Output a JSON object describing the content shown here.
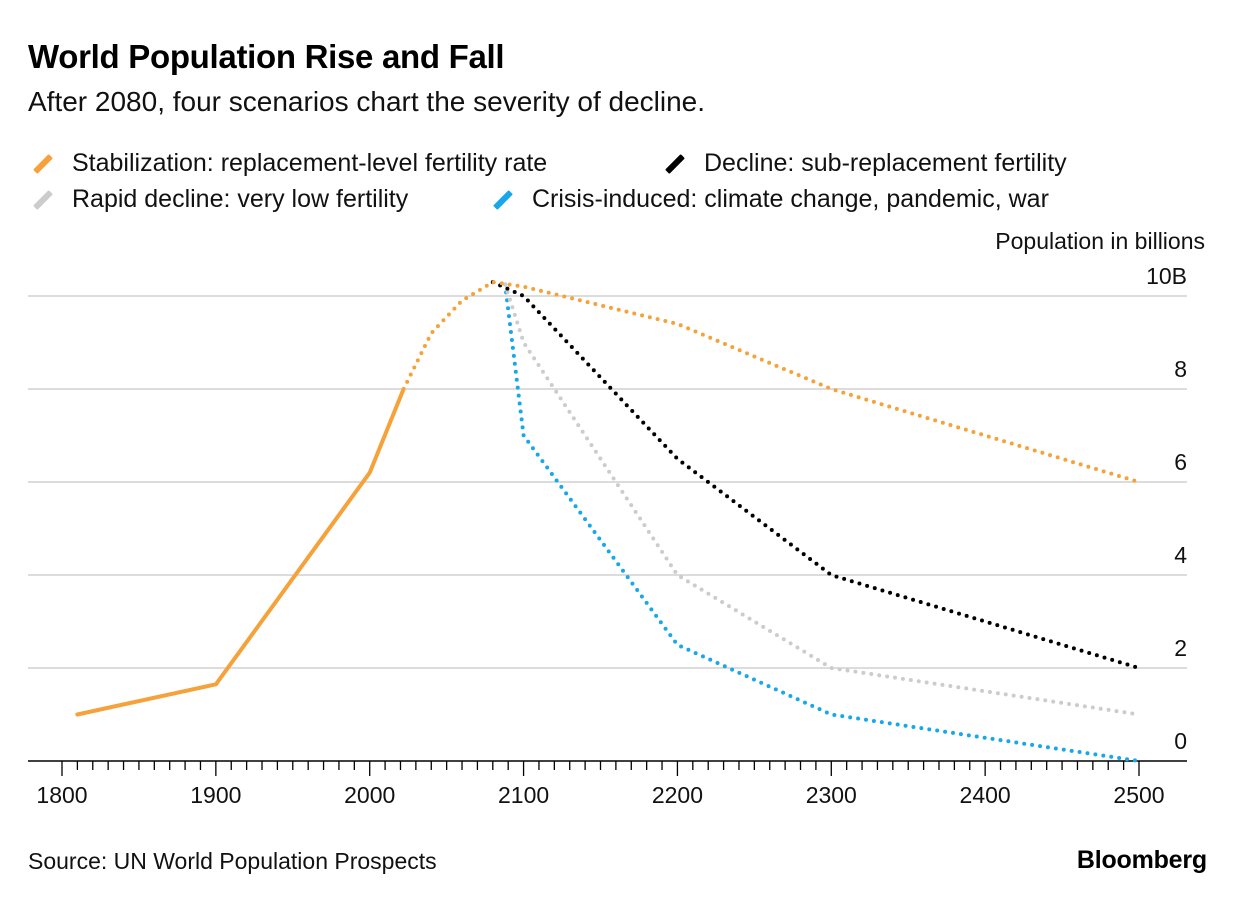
{
  "chart_data": {
    "type": "line",
    "title": "World Population Rise and Fall",
    "subtitle": "After 2080, four scenarios chart the severity of decline.",
    "ylabel": "Population in billions",
    "source": "Source: UN World Population Prospects",
    "brand": "Bloomberg",
    "xlim": [
      1800,
      2500
    ],
    "ylim": [
      0,
      10
    ],
    "x_ticks": [
      1800,
      1900,
      2000,
      2100,
      2200,
      2300,
      2400,
      2500
    ],
    "y_ticks": [
      {
        "value": 0,
        "label": "0"
      },
      {
        "value": 2,
        "label": "2"
      },
      {
        "value": 4,
        "label": "4"
      },
      {
        "value": 6,
        "label": "6"
      },
      {
        "value": 8,
        "label": "8"
      },
      {
        "value": 10,
        "label": "10B"
      }
    ],
    "grid": true,
    "legend_position": "top",
    "history": {
      "color": "#f6a23a",
      "points": [
        [
          1810,
          1.0
        ],
        [
          1900,
          1.65
        ],
        [
          2000,
          6.2
        ],
        [
          2022,
          8.0
        ]
      ]
    },
    "series": [
      {
        "name": "Stabilization: replacement-level fertility rate",
        "color": "#f6a23a",
        "points": [
          [
            2022,
            8.0
          ],
          [
            2040,
            9.2
          ],
          [
            2060,
            9.9
          ],
          [
            2080,
            10.3
          ],
          [
            2100,
            10.2
          ],
          [
            2200,
            9.4
          ],
          [
            2300,
            8.0
          ],
          [
            2400,
            7.0
          ],
          [
            2500,
            6.0
          ]
        ]
      },
      {
        "name": "Decline: sub-replacement fertility",
        "color": "#000000",
        "points": [
          [
            2080,
            10.3
          ],
          [
            2100,
            10.0
          ],
          [
            2200,
            6.5
          ],
          [
            2300,
            4.0
          ],
          [
            2400,
            3.0
          ],
          [
            2500,
            2.0
          ]
        ]
      },
      {
        "name": "Rapid decline: very low fertility",
        "color": "#cccccc",
        "points": [
          [
            2088,
            10.25
          ],
          [
            2100,
            9.0
          ],
          [
            2200,
            4.0
          ],
          [
            2300,
            2.0
          ],
          [
            2400,
            1.5
          ],
          [
            2500,
            1.0
          ]
        ]
      },
      {
        "name": "Crisis-induced: climate change, pandemic, war",
        "color": "#19a7ec",
        "points": [
          [
            2088,
            10.25
          ],
          [
            2100,
            7.0
          ],
          [
            2200,
            2.5
          ],
          [
            2300,
            1.0
          ],
          [
            2400,
            0.5
          ],
          [
            2500,
            0.0
          ]
        ]
      }
    ]
  }
}
